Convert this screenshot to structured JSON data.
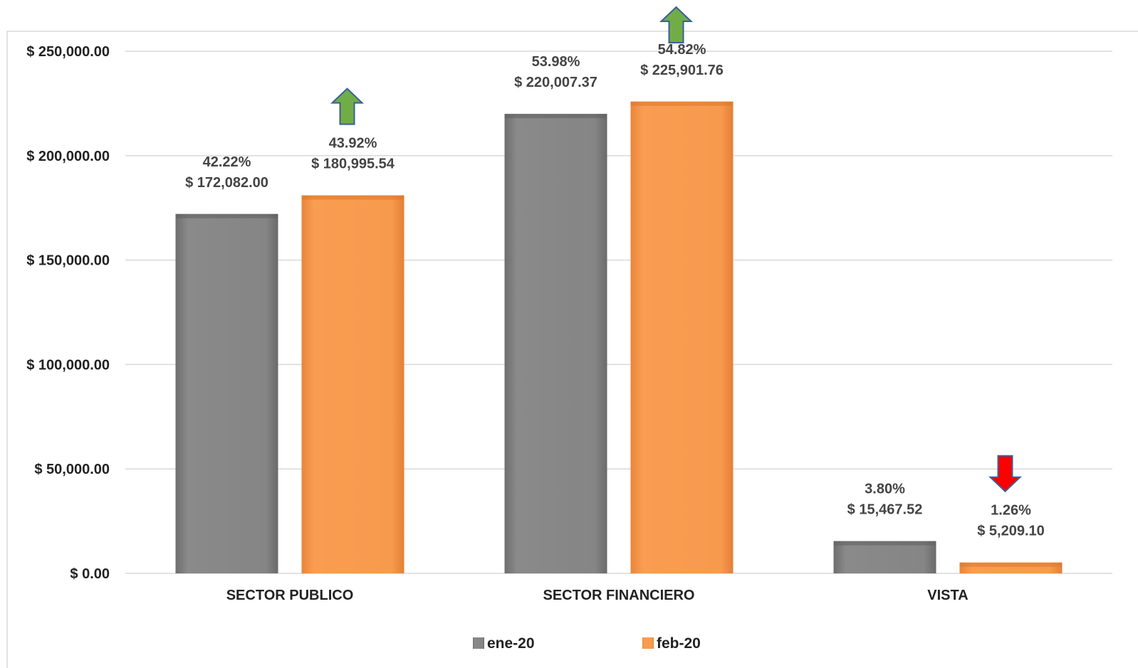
{
  "chart_data": {
    "type": "bar",
    "categories": [
      "SECTOR PUBLICO",
      "SECTOR FINANCIERO",
      "VISTA"
    ],
    "series": [
      {
        "name": "ene-20",
        "color": "#808080",
        "values": [
          172082.0,
          220007.37,
          15467.52
        ],
        "value_labels": [
          "$ 172,082.00",
          "$ 220,007.37",
          "$ 15,467.52"
        ],
        "percent_labels": [
          "42.22%",
          "53.98%",
          "3.80%"
        ]
      },
      {
        "name": "feb-20",
        "color": "#F79646",
        "values": [
          180995.54,
          225901.76,
          5209.1
        ],
        "value_labels": [
          "$ 180,995.54",
          "$ 225,901.76",
          "$ 5,209.10"
        ],
        "percent_labels": [
          "43.92%",
          "54.82%",
          "1.26%"
        ]
      }
    ],
    "trend_arrows": [
      {
        "category": "SECTOR PUBLICO",
        "direction": "up",
        "color": "#70AD47"
      },
      {
        "category": "SECTOR FINANCIERO",
        "direction": "up",
        "color": "#70AD47"
      },
      {
        "category": "VISTA",
        "direction": "down",
        "color": "#FF0000"
      }
    ],
    "yticks": [
      0,
      50000,
      100000,
      150000,
      200000,
      250000
    ],
    "ytick_labels": [
      "$ 0.00",
      "$ 50,000.00",
      "$ 100,000.00",
      "$ 150,000.00",
      "$ 200,000.00",
      "$ 250,000.00"
    ],
    "ylim": [
      0,
      250000
    ],
    "grid": true,
    "legend_position": "bottom"
  }
}
